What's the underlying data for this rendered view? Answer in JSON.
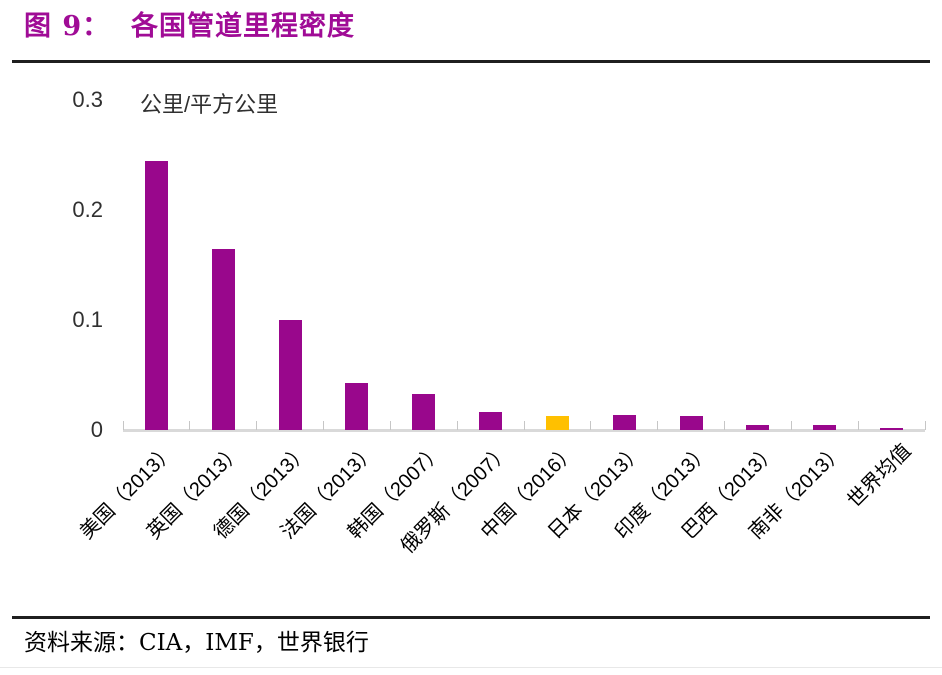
{
  "header": {
    "title": "图 9：  各国管道里程密度",
    "title_color": "#A00C96"
  },
  "footer": {
    "source": "资料来源：CIA，IMF，世界银行"
  },
  "chart_data": {
    "type": "bar",
    "title": "各国管道里程密度",
    "unit_label": "公里/平方公里",
    "ylabel": "公里/平方公里",
    "xlabel": "",
    "categories": [
      "美国（2013）",
      "英国（2013）",
      "德国（2013）",
      "法国（2013）",
      "韩国（2007）",
      "俄罗斯（2007）",
      "中国（2016）",
      "日本（2013）",
      "印度（2013）",
      "巴西（2013）",
      "南非（2013）",
      "世界均值"
    ],
    "values": [
      0.245,
      0.165,
      0.1,
      0.043,
      0.033,
      0.016,
      0.013,
      0.014,
      0.013,
      0.005,
      0.005,
      0.002
    ],
    "highlight_index": 6,
    "colors": {
      "bar_default": "#99078C",
      "bar_highlight": "#FFC000",
      "axis_line": "#D9D9D9",
      "title": "#A00C96"
    },
    "ylim": [
      0,
      0.3
    ],
    "yticks": [
      0,
      0.1,
      0.2,
      0.3
    ],
    "ytick_labels": [
      "0",
      "0.1",
      "0.2",
      "0.3"
    ],
    "grid": false,
    "legend": null
  }
}
